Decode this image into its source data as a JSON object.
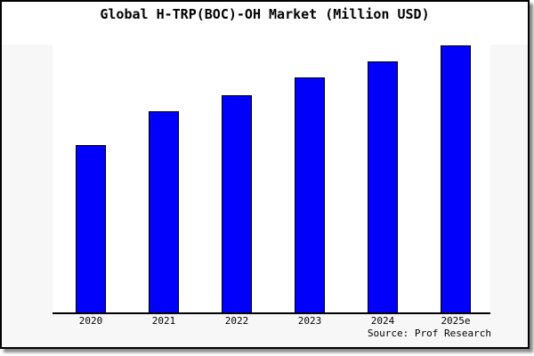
{
  "figure": {
    "title": "Global H-TRP(BOC)-OH Market (Million USD)",
    "source": "Source: Prof Research",
    "colors": {
      "bar_fill": "#0000fb",
      "bar_edge": "#000000",
      "figure_background": "#f7f7f7",
      "plot_background": "#ffffff",
      "border": "#000000",
      "shadow": "#8a8a8a",
      "text": "#000000"
    }
  },
  "chart_data": {
    "type": "bar",
    "title": "Global H-TRP(BOC)-OH Market (Million USD)",
    "categories": [
      "2020",
      "2021",
      "2022",
      "2023",
      "2024",
      "2025e"
    ],
    "values": [
      62.9,
      75.3,
      81.6,
      88.0,
      94.0,
      100.0
    ],
    "xlabel": "",
    "ylabel": "",
    "ylim": [
      0,
      100.5
    ],
    "grid": false,
    "legend": false,
    "y_axis_ticks_visible": false,
    "source": "Source: Prof Research"
  }
}
